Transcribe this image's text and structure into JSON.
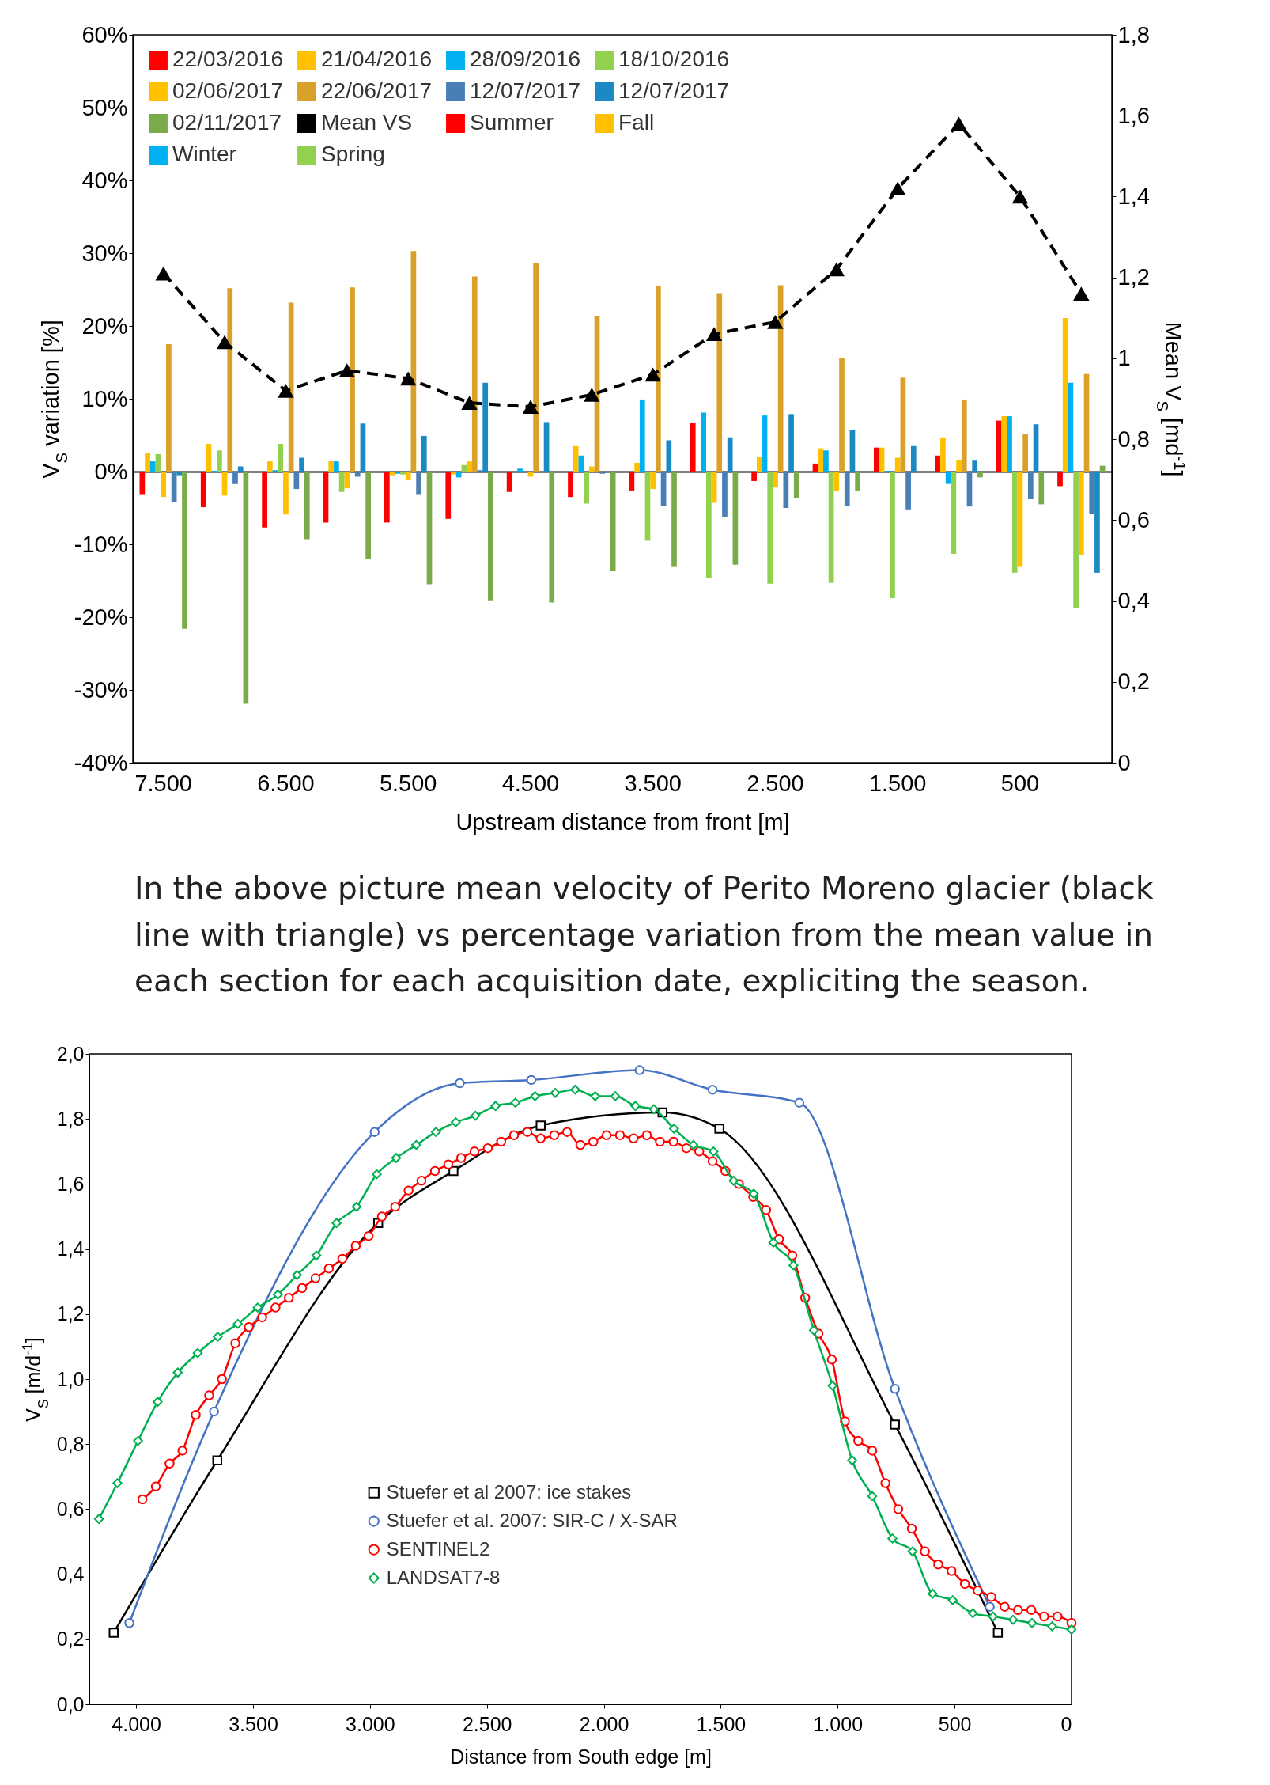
{
  "chart_data": [
    {
      "type": "bar",
      "xlabel": "Upstream distance from front [m]",
      "ylabel": "V$_{S}$ variation [%]",
      "y2label": "Mean V$_{S}$ [md$^{-1}$]",
      "categories": [
        "7.500",
        null,
        "6.500",
        null,
        "5.500",
        null,
        "4.500",
        null,
        "3.500",
        null,
        "2.500",
        null,
        "1.500",
        null,
        "500",
        null
      ],
      "series": [
        {
          "name": "22/03/2016",
          "color": "#ff0000",
          "values": [
            -3.1,
            -4.9,
            -7.7,
            -7.0,
            -7.0,
            -6.5,
            -2.8,
            -3.5,
            -2.6,
            6.7,
            -1.3,
            1.1,
            3.3,
            2.2,
            7.0,
            -2.0
          ]
        },
        {
          "name": "21/04/2016",
          "color": "#ffc000",
          "values": [
            2.6,
            3.8,
            1.4,
            1.4,
            -0.5,
            -0.4,
            0,
            3.5,
            1.2,
            0,
            2.0,
            3.2,
            3.3,
            4.7,
            7.6,
            21.1
          ]
        },
        {
          "name": "28/09/2016",
          "color": "#00b0f0",
          "values": [
            1.4,
            0.1,
            0.2,
            1.4,
            -0.3,
            -0.8,
            0.4,
            2.2,
            9.9,
            8.1,
            7.7,
            2.9,
            0.1,
            -1.7,
            7.6,
            12.2
          ]
        },
        {
          "name": "18/10/2016",
          "color": "#92d050",
          "values": [
            2.4,
            2.9,
            3.8,
            -2.8,
            -0.4,
            0.9,
            0,
            -4.4,
            -9.5,
            -14.6,
            -15.4,
            -15.3,
            -17.4,
            -11.3,
            -13.9,
            -18.7
          ]
        },
        {
          "name": "02/06/2017",
          "color": "#ffc000",
          "values": [
            -3.5,
            -3.3,
            -5.9,
            -2.3,
            -1.2,
            1.4,
            -0.7,
            0.7,
            -2.4,
            -4.3,
            -2.2,
            -2.7,
            1.9,
            1.6,
            -13.0,
            -11.5
          ]
        },
        {
          "name": "22/06/2017",
          "color": "#d9a02a",
          "values": [
            17.5,
            25.2,
            23.2,
            25.3,
            30.3,
            26.8,
            28.7,
            21.3,
            25.5,
            24.5,
            25.6,
            15.6,
            12.9,
            9.9,
            5.1,
            13.4
          ]
        },
        {
          "name": "12/07/2017",
          "color": "#4a7fb5",
          "values": [
            -4.2,
            -1.7,
            -2.4,
            -0.7,
            -3.1,
            0.2,
            0,
            -0.3,
            -4.7,
            -6.2,
            -5.0,
            -4.7,
            -5.2,
            -4.8,
            -3.8,
            -5.8
          ]
        },
        {
          "name": "12/07/2017",
          "color": "#1b8ac4",
          "values": [
            -0.5,
            0.7,
            1.9,
            6.6,
            4.9,
            12.2,
            6.8,
            0,
            4.3,
            4.7,
            7.9,
            5.7,
            3.5,
            1.5,
            6.5,
            -13.9
          ]
        },
        {
          "name": "02/11/2017",
          "color": "#7aab4a",
          "values": [
            -21.6,
            -31.9,
            -9.3,
            -12.0,
            -15.5,
            -17.7,
            -18.0,
            -13.7,
            -13.0,
            -12.8,
            -3.6,
            -2.6,
            0,
            -0.8,
            -4.5,
            0.8
          ]
        },
        {
          "name": "Mean VS",
          "type": "line",
          "axis": "y2",
          "color": "#000000",
          "line_style": "dashed",
          "marker": "triangle",
          "values": [
            1.21,
            1.04,
            0.92,
            0.97,
            0.95,
            0.89,
            0.88,
            0.91,
            0.96,
            1.06,
            1.09,
            1.22,
            1.42,
            1.58,
            1.4,
            1.16
          ]
        },
        {
          "name": "Summer",
          "type": "line",
          "color": "#ff0000",
          "values": [
            null,
            null,
            null,
            null,
            null,
            null,
            null,
            null,
            null,
            null,
            null,
            null,
            null,
            null,
            null,
            null
          ]
        },
        {
          "name": "Fall",
          "type": "line",
          "color": "#ffc000",
          "values": [
            null,
            null,
            null,
            null,
            null,
            null,
            null,
            null,
            null,
            null,
            null,
            null,
            null,
            null,
            null,
            null
          ]
        },
        {
          "name": "Winter",
          "type": "line",
          "color": "#00b0f0",
          "values": [
            null,
            null,
            null,
            null,
            null,
            null,
            null,
            null,
            null,
            null,
            null,
            null,
            null,
            null,
            null,
            null
          ]
        },
        {
          "name": "Spring",
          "type": "line",
          "color": "#92d050",
          "values": [
            null,
            null,
            null,
            null,
            null,
            null,
            null,
            null,
            null,
            null,
            null,
            null,
            null,
            null,
            null,
            null
          ]
        }
      ],
      "ylim": [
        -40,
        60
      ],
      "yticks": [
        {
          "value": -40,
          "label": "-40%"
        },
        {
          "value": -30,
          "label": "-30%"
        },
        {
          "value": -20,
          "label": "-20%"
        },
        {
          "value": -10,
          "label": "-10%"
        },
        {
          "value": 0,
          "label": "0%"
        },
        {
          "value": 10,
          "label": "10%"
        },
        {
          "value": 20,
          "label": "20%"
        },
        {
          "value": 30,
          "label": "30%"
        },
        {
          "value": 40,
          "label": "40%"
        },
        {
          "value": 50,
          "label": "50%"
        },
        {
          "value": 60,
          "label": "60%"
        }
      ],
      "y2lim": [
        0,
        1.8
      ],
      "y2ticks": [
        0,
        {
          "value": 0.2,
          "label": "0,2"
        },
        {
          "value": 0.4,
          "label": "0,4"
        },
        {
          "value": 0.6,
          "label": "0,6"
        },
        {
          "value": 0.8,
          "label": "0,8"
        },
        1,
        {
          "value": 1.2,
          "label": "1,2"
        },
        {
          "value": 1.4,
          "label": "1,4"
        },
        {
          "value": 1.6,
          "label": "1,6"
        },
        {
          "value": 1.8,
          "label": "1,8"
        }
      ],
      "legend": "top left",
      "annotations": [
        "In the above picture mean velocity of Perito Moreno glacier (black line with triangle) vs percentage variation from the mean value in each section for each acquisition date, expliciting the season."
      ]
    },
    {
      "type": "line",
      "xlabel": "Distance from South edge [m]",
      "ylabel": "V$_{S}$ [m/d$^{-1}$]",
      "series": [
        {
          "name": "Stuefer et al 2007: ice stakes",
          "color": "#000000",
          "marker": "square",
          "x": [
            4096,
            3653,
            2965,
            2643,
            2270,
            1749,
            1506,
            755,
            315
          ],
          "values": [
            0.22,
            0.75,
            1.48,
            1.64,
            1.78,
            1.82,
            1.77,
            0.86,
            0.22
          ]
        },
        {
          "name": "Stuefer et al. 2007: SIR-C / X-SAR",
          "color": "#4472c4",
          "marker": "circle",
          "x": [
            4029,
            3667,
            2980,
            2616,
            2310,
            1847,
            1535,
            1164,
            755,
            350
          ],
          "values": [
            0.25,
            0.9,
            1.76,
            1.91,
            1.92,
            1.95,
            1.89,
            1.85,
            0.97,
            0.3
          ]
        },
        {
          "name": "SENTINEL2",
          "color": "#ff0000",
          "marker": "circle",
          "x": [
            3973,
            3916,
            3857,
            3802,
            3745,
            3688,
            3633,
            3576,
            3518,
            3461,
            3404,
            3347,
            3290,
            3233,
            3176,
            3118,
            3061,
            3006,
            2949,
            2892,
            2835,
            2780,
            2722,
            2665,
            2610,
            2553,
            2496,
            2439,
            2384,
            2327,
            2270,
            2212,
            2157,
            2100,
            2045,
            1988,
            1931,
            1873,
            1816,
            1760,
            1702,
            1647,
            1592,
            1535,
            1480,
            1422,
            1361,
            1306,
            1251,
            1194,
            1139,
            1082,
            1025,
            969,
            912,
            852,
            796,
            741,
            683,
            627,
            570,
            513,
            456,
            401,
            343,
            286,
            229,
            172,
            117,
            60,
            0
          ],
          "values": [
            0.63,
            0.67,
            0.74,
            0.78,
            0.89,
            0.95,
            1.0,
            1.11,
            1.16,
            1.19,
            1.22,
            1.25,
            1.28,
            1.31,
            1.34,
            1.37,
            1.41,
            1.44,
            1.5,
            1.53,
            1.58,
            1.61,
            1.64,
            1.66,
            1.68,
            1.7,
            1.71,
            1.73,
            1.75,
            1.76,
            1.74,
            1.75,
            1.76,
            1.72,
            1.73,
            1.75,
            1.75,
            1.74,
            1.75,
            1.73,
            1.73,
            1.71,
            1.7,
            1.67,
            1.64,
            1.6,
            1.56,
            1.52,
            1.43,
            1.38,
            1.25,
            1.14,
            1.06,
            0.87,
            0.81,
            0.78,
            0.68,
            0.6,
            0.54,
            0.47,
            0.43,
            0.41,
            0.37,
            0.35,
            0.33,
            0.3,
            0.29,
            0.29,
            0.27,
            0.27,
            0.25
          ]
        },
        {
          "name": "LANDSAT7-8",
          "color": "#00b050",
          "marker": "diamond",
          "x": [
            4159,
            4080,
            3992,
            3908,
            3822,
            3737,
            3651,
            3565,
            3480,
            3394,
            3312,
            3229,
            3143,
            3057,
            2971,
            2888,
            2802,
            2718,
            2633,
            2549,
            2463,
            2378,
            2294,
            2208,
            2122,
            2037,
            1951,
            1865,
            1786,
            1700,
            1617,
            1531,
            1445,
            1359,
            1275,
            1189,
            1102,
            1022,
            938,
            852,
            766,
            680,
            594,
            508,
            422,
            336,
            250,
            169,
            83,
            0
          ],
          "values": [
            0.57,
            0.68,
            0.81,
            0.93,
            1.02,
            1.08,
            1.13,
            1.17,
            1.22,
            1.26,
            1.32,
            1.38,
            1.48,
            1.53,
            1.63,
            1.68,
            1.72,
            1.76,
            1.79,
            1.81,
            1.84,
            1.85,
            1.87,
            1.88,
            1.89,
            1.87,
            1.87,
            1.84,
            1.83,
            1.77,
            1.72,
            1.7,
            1.61,
            1.57,
            1.42,
            1.35,
            1.15,
            0.98,
            0.75,
            0.64,
            0.51,
            0.47,
            0.34,
            0.32,
            0.28,
            0.27,
            0.26,
            0.25,
            0.24,
            0.23
          ]
        }
      ],
      "xlim": [
        4200,
        0
      ],
      "xticks": [
        {
          "value": 4000,
          "label": "4.000"
        },
        {
          "value": 3500,
          "label": "3.500"
        },
        {
          "value": 3000,
          "label": "3.000"
        },
        {
          "value": 2500,
          "label": "2.500"
        },
        {
          "value": 2000,
          "label": "2.000"
        },
        {
          "value": 1500,
          "label": "1.500"
        },
        {
          "value": 1000,
          "label": "1.000"
        },
        500,
        0
      ],
      "ylim": [
        0,
        2
      ],
      "yticks": [
        {
          "value": 0,
          "label": "0,0"
        },
        {
          "value": 0.2,
          "label": "0,2"
        },
        {
          "value": 0.4,
          "label": "0,4"
        },
        {
          "value": 0.6,
          "label": "0,6"
        },
        {
          "value": 0.8,
          "label": "0,8"
        },
        {
          "value": 1,
          "label": "1,0"
        },
        {
          "value": 1.2,
          "label": "1,2"
        },
        {
          "value": 1.4,
          "label": "1,4"
        },
        {
          "value": 1.6,
          "label": "1,6"
        },
        {
          "value": 1.8,
          "label": "1,8"
        },
        {
          "value": 2,
          "label": "2,0"
        }
      ],
      "legend": "bottom"
    }
  ]
}
